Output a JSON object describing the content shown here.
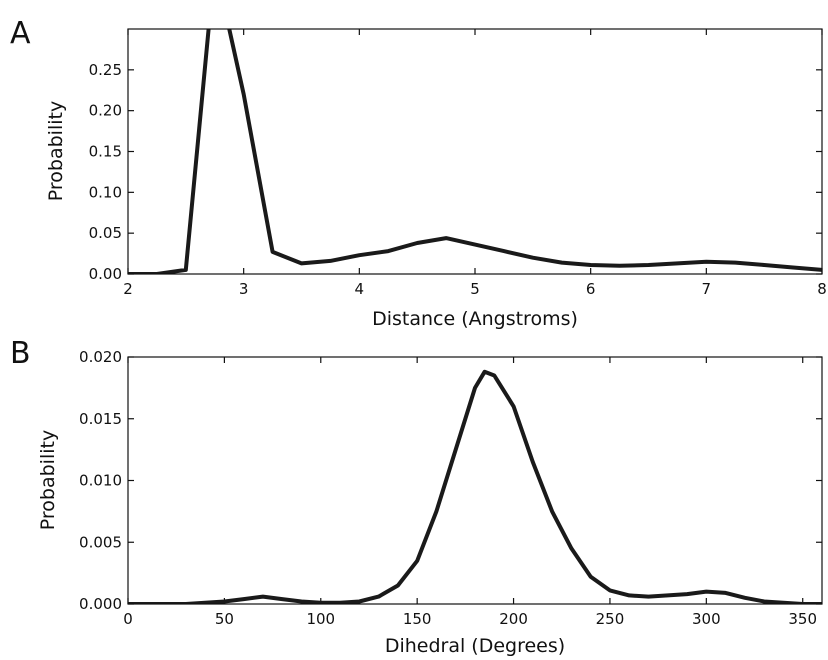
{
  "chart_data": [
    {
      "panel": "A",
      "type": "line",
      "xlabel": "Distance (Angstroms)",
      "ylabel": "Probability",
      "xlim": [
        2,
        8
      ],
      "ylim": [
        0,
        0.3
      ],
      "xticks": [
        2,
        3,
        4,
        5,
        6,
        7,
        8
      ],
      "yticks": [
        0.0,
        0.05,
        0.1,
        0.15,
        0.2,
        0.25
      ],
      "ytick_labels": [
        "0.00",
        "0.05",
        "0.10",
        "0.15",
        "0.20",
        "0.25"
      ],
      "grid": false,
      "series": [
        {
          "x": [
            2.0,
            2.25,
            2.5,
            2.75,
            3.0,
            3.25,
            3.5,
            3.75,
            4.0,
            4.25,
            4.5,
            4.75,
            5.0,
            5.25,
            5.5,
            5.75,
            6.0,
            6.25,
            6.5,
            6.75,
            7.0,
            7.25,
            7.5,
            7.75,
            8.0
          ],
          "values": [
            0.0,
            0.0,
            0.005,
            0.38,
            0.22,
            0.027,
            0.013,
            0.016,
            0.023,
            0.028,
            0.038,
            0.044,
            0.036,
            0.028,
            0.02,
            0.014,
            0.011,
            0.01,
            0.011,
            0.013,
            0.015,
            0.014,
            0.011,
            0.008,
            0.005
          ]
        }
      ]
    },
    {
      "panel": "B",
      "type": "line",
      "xlabel": "Dihedral (Degrees)",
      "ylabel": "Probability",
      "xlim": [
        0,
        360
      ],
      "ylim": [
        0,
        0.02
      ],
      "xticks": [
        0,
        50,
        100,
        150,
        200,
        250,
        300,
        350
      ],
      "yticks": [
        0.0,
        0.005,
        0.01,
        0.015,
        0.02
      ],
      "ytick_labels": [
        "0.000",
        "0.005",
        "0.010",
        "0.015",
        "0.020"
      ],
      "grid": false,
      "series": [
        {
          "x": [
            0,
            10,
            20,
            30,
            40,
            50,
            60,
            70,
            80,
            90,
            100,
            110,
            120,
            130,
            140,
            150,
            160,
            170,
            180,
            185,
            190,
            200,
            210,
            220,
            230,
            240,
            250,
            260,
            270,
            280,
            290,
            300,
            310,
            320,
            330,
            340,
            350,
            360
          ],
          "values": [
            0.0,
            0.0,
            0.0,
            0.0,
            0.0001,
            0.0002,
            0.0004,
            0.0006,
            0.0004,
            0.0002,
            0.0001,
            0.0001,
            0.0002,
            0.0006,
            0.0015,
            0.0035,
            0.0075,
            0.0125,
            0.0175,
            0.0188,
            0.0185,
            0.016,
            0.0115,
            0.0075,
            0.0045,
            0.0022,
            0.0011,
            0.0007,
            0.0006,
            0.0007,
            0.0008,
            0.001,
            0.0009,
            0.0005,
            0.0002,
            0.0001,
            0.0,
            0.0
          ]
        }
      ]
    }
  ]
}
